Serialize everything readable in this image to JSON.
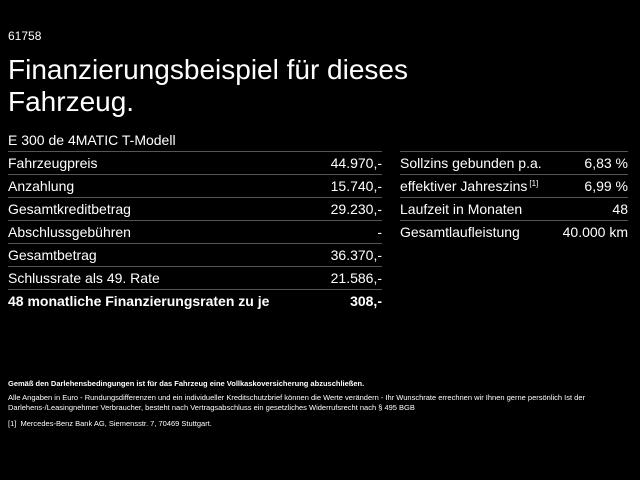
{
  "header": {
    "id": "61758",
    "title": "Finanzierungsbeispiel für dieses Fahrzeug.",
    "model": "E 300 de 4MATIC T-Modell"
  },
  "left_table": {
    "rows": [
      {
        "label": "Fahrzeugpreis",
        "value": "44.970,-"
      },
      {
        "label": "Anzahlung",
        "value": "15.740,-"
      },
      {
        "label": "Gesamtkreditbetrag",
        "value": "29.230,-"
      },
      {
        "label": "Abschlussgebühren",
        "value": "-"
      },
      {
        "label": "Gesamtbetrag",
        "value": "36.370,-"
      },
      {
        "label": "Schlussrate als 49. Rate",
        "value": "21.586,-"
      },
      {
        "label": "48 monatliche Finanzierungsraten zu je",
        "value": "308,-"
      }
    ]
  },
  "right_table": {
    "rows": [
      {
        "label": "Sollzins gebunden p.a.",
        "value": "6,83 %"
      },
      {
        "label": "effektiver Jahreszins",
        "note": "[1]",
        "value": "6,99 %"
      },
      {
        "label": "Laufzeit in Monaten",
        "value": "48"
      },
      {
        "label": "Gesamtlaufleistung",
        "value": "40.000 km"
      }
    ]
  },
  "notes": {
    "insurance": "Gemäß den Darlehensbedingungen ist für das Fahrzeug eine Vollkaskoversicherung abzuschließen.",
    "disclaimer": "Alle Angaben in Euro - Rundungsdifferenzen und ein individueller Kreditschutzbrief können die Werte verändern - Ihr Wunschrate errechnen wir Ihnen gerne persönlich Ist der Darlehens-/Leasingnehmer Verbraucher, besteht nach Vertragsabschluss ein gesetzliches Widerrufsrecht nach § 495 BGB",
    "footnote_marker": "[1]",
    "footnote": "Mercedes-Benz Bank AG, Siemensstr. 7, 70469 Stuttgart."
  }
}
